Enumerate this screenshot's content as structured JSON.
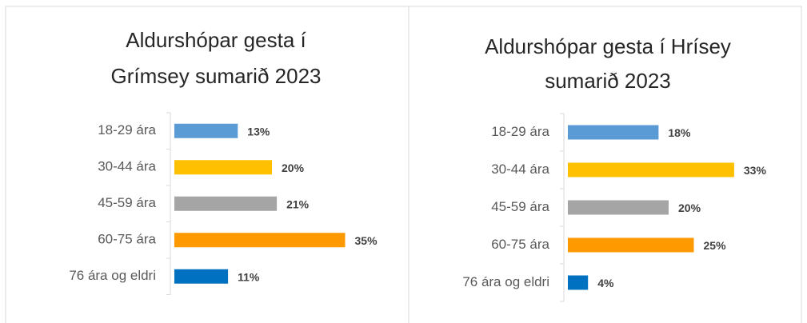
{
  "chart_data": [
    {
      "type": "bar",
      "title": [
        "Aldurshópar gesta í",
        "Grímsey sumarið 2023"
      ],
      "categories": [
        "18-29 ára",
        "30-44 ára",
        "45-59 ára",
        "60-75 ára",
        "76 ára og eldri"
      ],
      "values": [
        13,
        20,
        21,
        35,
        11
      ],
      "value_labels": [
        "13%",
        "20%",
        "21%",
        "35%",
        "11%"
      ],
      "colors": [
        "#5b9bd5",
        "#ffc000",
        "#a5a5a5",
        "#ff9900",
        "#0070c0"
      ]
    },
    {
      "type": "bar",
      "title": [
        "Aldurshópar gesta í Hrísey",
        "sumarið 2023"
      ],
      "categories": [
        "18-29 ára",
        "30-44 ára",
        "45-59 ára",
        "60-75 ára",
        "76 ára og eldri"
      ],
      "values": [
        18,
        33,
        20,
        25,
        4
      ],
      "value_labels": [
        "18%",
        "33%",
        "20%",
        "25%",
        "4%"
      ],
      "colors": [
        "#5b9bd5",
        "#ffc000",
        "#a5a5a5",
        "#ff9900",
        "#0070c0"
      ]
    }
  ]
}
